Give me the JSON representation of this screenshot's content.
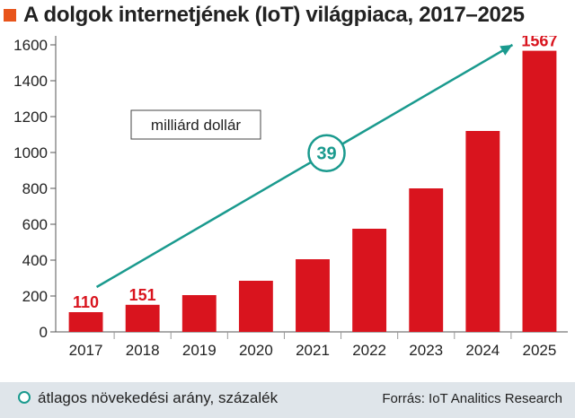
{
  "title": "A dolgok internetjének (IoT) világpiaca, 2017–2025",
  "colors": {
    "bar": "#d9141e",
    "trend": "#1a9a8e",
    "accent": "#e8541b",
    "footer_bg": "#dfe5ea"
  },
  "chart_data": {
    "type": "bar",
    "categories": [
      "2017",
      "2018",
      "2019",
      "2020",
      "2021",
      "2022",
      "2023",
      "2024",
      "2025"
    ],
    "values": [
      110,
      151,
      205,
      285,
      405,
      575,
      800,
      1120,
      1567
    ],
    "data_labels": [
      {
        "category": "2017",
        "text": "110"
      },
      {
        "category": "2018",
        "text": "151"
      },
      {
        "category": "2025",
        "text": "1567"
      }
    ],
    "yticks": [
      0,
      200,
      400,
      600,
      800,
      1000,
      1200,
      1400,
      1600
    ],
    "ylim": [
      0,
      1650
    ],
    "unit_label": "milliárd dollár",
    "trend": {
      "label": "39",
      "from_value": 250,
      "to_value": 1600
    },
    "grid": false
  },
  "footer": {
    "legend": "átlagos növekedési arány, százalék",
    "source": "Forrás: IoT Analitics Research"
  }
}
